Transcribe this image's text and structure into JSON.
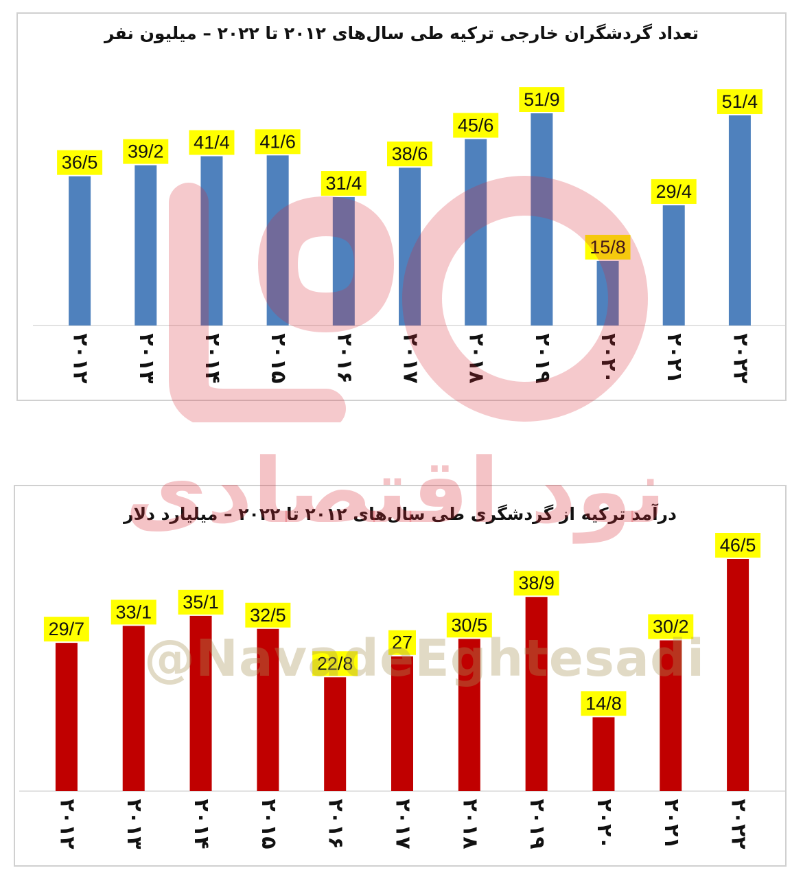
{
  "chart_data": [
    {
      "type": "bar",
      "title": "تعداد گردشگران خارجی ترکیه طی سال‌های ۲۰۱۲ تا ۲۰۲۲ – میلیون نفر",
      "categories": [
        "۲۰۱۲",
        "۲۰۱۳",
        "۲۰۱۴",
        "۲۰۱۵",
        "۲۰۱۶",
        "۲۰۱۷",
        "۲۰۱۸",
        "۲۰۱۹",
        "۲۰۲۰",
        "۲۰۲۱",
        "۲۰۲۲"
      ],
      "values": [
        36.5,
        39.2,
        41.4,
        41.6,
        31.4,
        38.6,
        45.6,
        51.9,
        15.8,
        29.4,
        51.4
      ],
      "data_labels": [
        "36/5",
        "39/2",
        "41/4",
        "41/6",
        "31/4",
        "38/6",
        "45/6",
        "51/9",
        "15/8",
        "29/4",
        "51/4"
      ],
      "ylim": [
        0,
        51.9
      ],
      "bar_color": "#4f81bd",
      "label_bg": "#ffff00",
      "grid": false
    },
    {
      "type": "bar",
      "title": "درآمد ترکیه از گردشگری طی سال‌های ۲۰۱۲ تا ۲۰۲۲ – میلیارد دلار",
      "categories": [
        "۲۰۱۲",
        "۲۰۱۳",
        "۲۰۱۴",
        "۲۰۱۵",
        "۲۰۱۶",
        "۲۰۱۷",
        "۲۰۱۸",
        "۲۰۱۹",
        "۲۰۲۰",
        "۲۰۲۱",
        "۲۰۲۲"
      ],
      "values": [
        29.7,
        33.1,
        35.1,
        32.5,
        22.8,
        27,
        30.5,
        38.9,
        14.8,
        30.2,
        46.5
      ],
      "data_labels": [
        "29/7",
        "33/1",
        "35/1",
        "32/5",
        "22/8",
        "27",
        "30/5",
        "38/9",
        "14/8",
        "30/2",
        "46/5"
      ],
      "ylim": [
        0,
        46.5
      ],
      "bar_color": "#c00000",
      "label_bg": "#ffff00",
      "grid": false
    }
  ],
  "watermark": {
    "brand": "نود اقتصادی",
    "handle": "@NavadeEghtesadi",
    "color": "#d62832"
  }
}
